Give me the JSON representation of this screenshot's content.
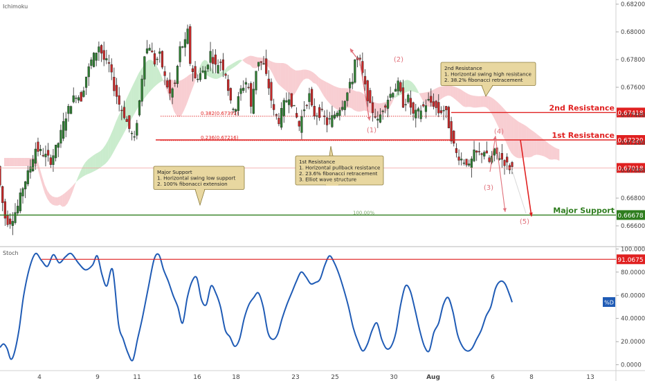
{
  "panel": {
    "indicator_label": "Ichimoku",
    "stoch_label": "Stoch",
    "stoch_series_label": "%D"
  },
  "colors": {
    "resistance": "#e02020",
    "support": "#2e7d1e",
    "current": "#e02020",
    "candle_up": "#2e7d32",
    "candle_down": "#c62828",
    "cloud_bull": "#9fdca4",
    "cloud_bear": "#f3a6ad",
    "stoch_line": "#1f5bb5",
    "note_bg": "#e8d7a0",
    "note_border": "#8a7a3a",
    "elliott": "#e0707a"
  },
  "levels": {
    "second_resistance": {
      "label": "2nd Resistance",
      "price": "0.67418"
    },
    "first_resistance": {
      "label": "1st Resistance",
      "price": "0.67220"
    },
    "current": {
      "price": "0.67018"
    },
    "major_support": {
      "label": "Major Support",
      "price": "0.66678"
    },
    "stoch_high": "91.0675"
  },
  "fib": {
    "f382": "0.382(0.67391)",
    "f236": "0.236(0.67216)",
    "f100": "100.00%"
  },
  "notes": {
    "second": [
      "2nd Resistance",
      "1. Horizontal swing high resistance",
      "2. 38.2% fibonacci retracement"
    ],
    "first": [
      "1st Resistance",
      "1. Horizontal pullback resistance",
      "2. 23.6% fibonacci retracement",
      "3. Elliot wave structure"
    ],
    "support": [
      "Major Support",
      "1. Horizontal swing low support",
      "2. 100% fibonacci extension"
    ]
  },
  "elliott": {
    "w1": "(1)",
    "w2": "(2)",
    "w3": "(3)",
    "w4": "(4)",
    "w5": "(5)"
  },
  "chart_data": [
    {
      "type": "candlestick",
      "title": "",
      "x_tick_labels": [
        "4",
        "9",
        "11",
        "16",
        "18",
        "23",
        "25",
        "30",
        "Aug",
        "6",
        "8",
        "13"
      ],
      "y_tick_labels": [
        "0.68200",
        "0.68000",
        "0.67800",
        "0.67600",
        "0.67400",
        "0.67200",
        "0.67000",
        "0.66800",
        "0.66600"
      ],
      "ylim": [
        0.6653,
        0.6822
      ],
      "close_path": [
        [
          0,
          0.6703
        ],
        [
          3,
          0.6682
        ],
        [
          6,
          0.6666
        ],
        [
          9,
          0.6662
        ],
        [
          12,
          0.6666
        ],
        [
          16,
          0.6674
        ],
        [
          20,
          0.6688
        ],
        [
          25,
          0.67
        ],
        [
          30,
          0.6716
        ],
        [
          36,
          0.6712
        ],
        [
          42,
          0.6707
        ],
        [
          48,
          0.672
        ],
        [
          53,
          0.6737
        ],
        [
          58,
          0.6749
        ],
        [
          62,
          0.6755
        ],
        [
          66,
          0.6752
        ],
        [
          70,
          0.6768
        ],
        [
          74,
          0.6779
        ],
        [
          78,
          0.6786
        ],
        [
          80,
          0.679
        ],
        [
          84,
          0.678
        ],
        [
          88,
          0.6776
        ],
        [
          92,
          0.676
        ],
        [
          96,
          0.6748
        ],
        [
          100,
          0.674
        ],
        [
          104,
          0.673
        ],
        [
          108,
          0.6722
        ],
        [
          112,
          0.675
        ],
        [
          116,
          0.6785
        ],
        [
          120,
          0.679
        ],
        [
          124,
          0.6778
        ],
        [
          128,
          0.6783
        ],
        [
          132,
          0.6767
        ],
        [
          136,
          0.6755
        ],
        [
          140,
          0.6762
        ],
        [
          144,
          0.6788
        ],
        [
          148,
          0.6792
        ],
        [
          150,
          0.68
        ],
        [
          152,
          0.6778
        ],
        [
          156,
          0.6766
        ],
        [
          160,
          0.677
        ],
        [
          164,
          0.6772
        ],
        [
          168,
          0.6785
        ],
        [
          172,
          0.6775
        ],
        [
          176,
          0.6779
        ],
        [
          180,
          0.677
        ],
        [
          184,
          0.6748
        ],
        [
          188,
          0.6745
        ],
        [
          192,
          0.6758
        ],
        [
          196,
          0.6764
        ],
        [
          198,
          0.676
        ],
        [
          200,
          0.6745
        ],
        [
          205,
          0.678
        ],
        [
          210,
          0.6776
        ],
        [
          214,
          0.676
        ],
        [
          218,
          0.6742
        ],
        [
          222,
          0.6736
        ],
        [
          226,
          0.6748
        ],
        [
          230,
          0.6754
        ],
        [
          234,
          0.6744
        ],
        [
          238,
          0.6732
        ],
        [
          242,
          0.6745
        ],
        [
          246,
          0.6754
        ],
        [
          249,
          0.674
        ],
        [
          252,
          0.6741
        ],
        [
          256,
          0.6741
        ],
        [
          260,
          0.6734
        ],
        [
          264,
          0.6738
        ],
        [
          268,
          0.6743
        ],
        [
          272,
          0.6748
        ],
        [
          276,
          0.6756
        ],
        [
          280,
          0.6766
        ],
        [
          282,
          0.678
        ],
        [
          286,
          0.6778
        ],
        [
          290,
          0.676
        ],
        [
          294,
          0.6746
        ],
        [
          298,
          0.674
        ],
        [
          300,
          0.6735
        ],
        [
          304,
          0.6745
        ],
        [
          308,
          0.6752
        ],
        [
          312,
          0.6758
        ],
        [
          316,
          0.6762
        ],
        [
          320,
          0.6748
        ],
        [
          324,
          0.6752
        ],
        [
          328,
          0.674
        ],
        [
          332,
          0.6742
        ],
        [
          336,
          0.6746
        ],
        [
          340,
          0.675
        ],
        [
          344,
          0.6748
        ],
        [
          348,
          0.6742
        ],
        [
          352,
          0.6744
        ],
        [
          354,
          0.6741
        ],
        [
          358,
          0.6724
        ],
        [
          362,
          0.6712
        ],
        [
          366,
          0.6708
        ],
        [
          370,
          0.6706
        ],
        [
          372,
          0.6702
        ],
        [
          376,
          0.6712
        ],
        [
          380,
          0.6712
        ],
        [
          384,
          0.6714
        ],
        [
          388,
          0.6706
        ],
        [
          392,
          0.6713
        ],
        [
          396,
          0.671
        ],
        [
          400,
          0.6706
        ],
        [
          404,
          0.6702
        ]
      ]
    },
    {
      "type": "line",
      "title": "",
      "x_tick_labels": [
        "4",
        "9",
        "11",
        "16",
        "18",
        "23",
        "25",
        "30",
        "Aug",
        "6",
        "8",
        "13"
      ],
      "y_tick_labels": [
        "100.0000",
        "80.0000",
        "60.0000",
        "40.0000",
        "20.0000",
        "0.0000"
      ],
      "ylim": [
        -5,
        102
      ],
      "series": [
        {
          "name": "%D",
          "values": [
            [
              0,
              15
            ],
            [
              3,
              18
            ],
            [
              6,
              14
            ],
            [
              9,
              5
            ],
            [
              12,
              10
            ],
            [
              16,
              30
            ],
            [
              20,
              60
            ],
            [
              25,
              84
            ],
            [
              30,
              96
            ],
            [
              35,
              90
            ],
            [
              40,
              85
            ],
            [
              45,
              95
            ],
            [
              50,
              88
            ],
            [
              55,
              93
            ],
            [
              60,
              96
            ],
            [
              66,
              88
            ],
            [
              72,
              82
            ],
            [
              78,
              86
            ],
            [
              82,
              94
            ],
            [
              86,
              78
            ],
            [
              90,
              68
            ],
            [
              95,
              82
            ],
            [
              100,
              35
            ],
            [
              104,
              22
            ],
            [
              108,
              10
            ],
            [
              112,
              4
            ],
            [
              116,
              22
            ],
            [
              120,
              40
            ],
            [
              125,
              66
            ],
            [
              130,
              91
            ],
            [
              134,
              95
            ],
            [
              138,
              82
            ],
            [
              142,
              72
            ],
            [
              146,
              60
            ],
            [
              150,
              50
            ],
            [
              154,
              36
            ],
            [
              158,
              58
            ],
            [
              162,
              72
            ],
            [
              166,
              75
            ],
            [
              170,
              56
            ],
            [
              174,
              52
            ],
            [
              178,
              68
            ],
            [
              182,
              62
            ],
            [
              186,
              50
            ],
            [
              190,
              30
            ],
            [
              194,
              24
            ],
            [
              198,
              16
            ],
            [
              202,
              22
            ],
            [
              206,
              40
            ],
            [
              210,
              52
            ],
            [
              214,
              58
            ],
            [
              218,
              62
            ],
            [
              222,
              50
            ],
            [
              226,
              28
            ],
            [
              230,
              22
            ],
            [
              234,
              26
            ],
            [
              238,
              40
            ],
            [
              242,
              52
            ],
            [
              246,
              62
            ],
            [
              250,
              72
            ],
            [
              254,
              80
            ],
            [
              258,
              76
            ],
            [
              262,
              70
            ],
            [
              266,
              71
            ],
            [
              270,
              74
            ],
            [
              274,
              86
            ],
            [
              278,
              94
            ],
            [
              282,
              88
            ],
            [
              286,
              78
            ],
            [
              290,
              65
            ],
            [
              294,
              50
            ],
            [
              298,
              32
            ],
            [
              302,
              20
            ],
            [
              306,
              12
            ],
            [
              310,
              18
            ],
            [
              314,
              30
            ],
            [
              318,
              36
            ],
            [
              322,
              22
            ],
            [
              326,
              14
            ],
            [
              330,
              16
            ],
            [
              334,
              28
            ],
            [
              338,
              52
            ],
            [
              342,
              68
            ],
            [
              346,
              64
            ],
            [
              350,
              48
            ],
            [
              354,
              30
            ],
            [
              358,
              16
            ],
            [
              362,
              12
            ],
            [
              366,
              28
            ],
            [
              370,
              36
            ],
            [
              374,
              52
            ],
            [
              378,
              58
            ],
            [
              382,
              46
            ],
            [
              386,
              26
            ],
            [
              390,
              16
            ],
            [
              394,
              12
            ],
            [
              398,
              14
            ],
            [
              402,
              22
            ],
            [
              406,
              30
            ],
            [
              410,
              42
            ],
            [
              414,
              50
            ],
            [
              418,
              66
            ],
            [
              422,
              72
            ],
            [
              426,
              70
            ],
            [
              430,
              60
            ],
            [
              432,
              54
            ]
          ]
        }
      ]
    }
  ]
}
